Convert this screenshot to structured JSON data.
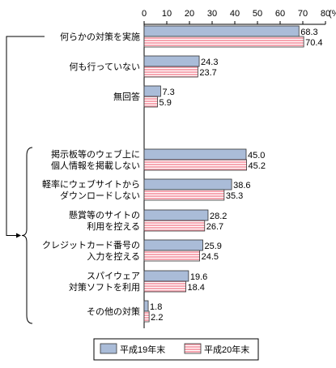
{
  "chart_data": {
    "type": "bar",
    "orientation": "horizontal",
    "x_axis": {
      "ticks": [
        "0",
        "10",
        "20",
        "30",
        "40",
        "50",
        "60",
        "70",
        "80"
      ],
      "unit": "(%)",
      "range": [
        0,
        80
      ],
      "position": "top"
    },
    "categories": [
      {
        "lines": [
          "何らかの対策を実施"
        ]
      },
      {
        "lines": [
          "何も行っていない"
        ]
      },
      {
        "lines": [
          "無回答"
        ]
      },
      {
        "lines": [
          "掲示板等のウェブ上に",
          "個人情報を掲載しない"
        ]
      },
      {
        "lines": [
          "軽率にウェブサイトから",
          "ダウンロードしない"
        ]
      },
      {
        "lines": [
          "懸賞等のサイトの",
          "利用を控える"
        ]
      },
      {
        "lines": [
          "クレジットカード番号の",
          "入力を控える"
        ]
      },
      {
        "lines": [
          "スパイウェア",
          "対策ソフトを利用"
        ]
      },
      {
        "lines": [
          "その他の対策"
        ]
      }
    ],
    "series": [
      {
        "name": "平成19年末",
        "color": "#aabcd8",
        "values": [
          68.3,
          24.3,
          7.3,
          45.0,
          38.6,
          28.2,
          25.9,
          19.6,
          1.8
        ],
        "labels": [
          "68.3",
          "24.3",
          "7.3",
          "45.0",
          "38.6",
          "28.2",
          "25.9",
          "19.6",
          "1.8"
        ]
      },
      {
        "name": "平成20年末",
        "color": "#f7a7b2",
        "values": [
          70.4,
          23.7,
          5.9,
          45.2,
          35.3,
          26.7,
          24.5,
          18.4,
          2.2
        ],
        "labels": [
          "70.4",
          "23.7",
          "5.9",
          "45.2",
          "35.3",
          "26.7",
          "24.5",
          "18.4",
          "2.2"
        ]
      }
    ],
    "legend": {
      "position": "bottom"
    },
    "grid": false,
    "group_bracket": {
      "from": "何らかの対策を実施",
      "to": [
        "掲示板等のウェブ上に個人情報を掲載しない",
        "その他の対策"
      ]
    }
  }
}
